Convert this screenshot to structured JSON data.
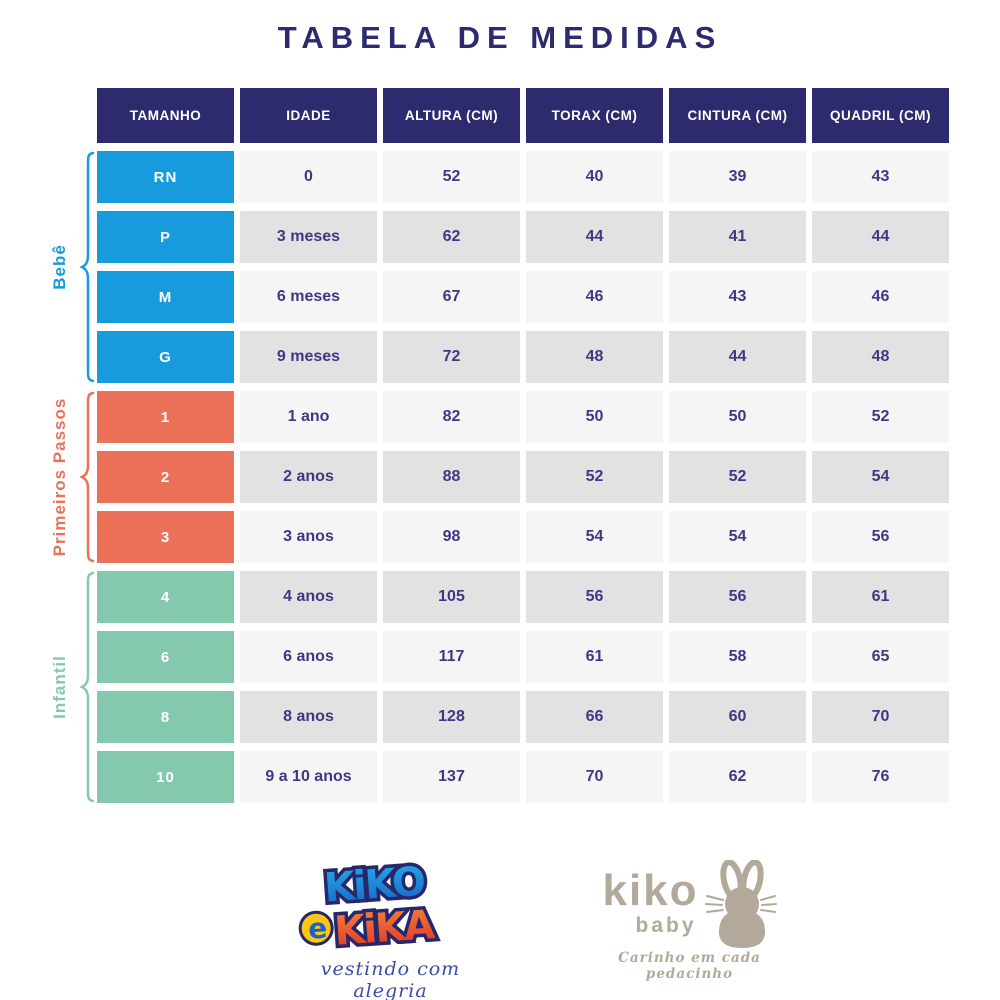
{
  "title": "TABELA DE MEDIDAS",
  "colors": {
    "navy_header": "#2d2a6e",
    "cell_text": "#3f3882",
    "row_light": "#f5f5f6",
    "row_dark": "#e2e2e3",
    "bebe_blue": "#189bdc",
    "passos_coral": "#eb7158",
    "infantil_mint": "#84c9ae",
    "brand_taupe": "#b3a99a",
    "tagline_blue": "#3c4da1"
  },
  "table": {
    "headers": [
      "TAMANHO",
      "IDADE",
      "ALTURA (CM)",
      "TORAX (CM)",
      "CINTURA (CM)",
      "QUADRIL (CM)"
    ],
    "groups": [
      {
        "label": "Bebê",
        "color": "#189bdc",
        "rows": [
          {
            "size": "RN",
            "idade": "0",
            "altura": "52",
            "torax": "40",
            "cintura": "39",
            "quadril": "43"
          },
          {
            "size": "P",
            "idade": "3 meses",
            "altura": "62",
            "torax": "44",
            "cintura": "41",
            "quadril": "44"
          },
          {
            "size": "M",
            "idade": "6 meses",
            "altura": "67",
            "torax": "46",
            "cintura": "43",
            "quadril": "46"
          },
          {
            "size": "G",
            "idade": "9 meses",
            "altura": "72",
            "torax": "48",
            "cintura": "44",
            "quadril": "48"
          }
        ]
      },
      {
        "label": "Primeiros Passos",
        "color": "#eb7158",
        "rows": [
          {
            "size": "1",
            "idade": "1 ano",
            "altura": "82",
            "torax": "50",
            "cintura": "50",
            "quadril": "52"
          },
          {
            "size": "2",
            "idade": "2 anos",
            "altura": "88",
            "torax": "52",
            "cintura": "52",
            "quadril": "54"
          },
          {
            "size": "3",
            "idade": "3 anos",
            "altura": "98",
            "torax": "54",
            "cintura": "54",
            "quadril": "56"
          }
        ]
      },
      {
        "label": "Infantil",
        "color": "#84c9ae",
        "rows": [
          {
            "size": "4",
            "idade": "4 anos",
            "altura": "105",
            "torax": "56",
            "cintura": "56",
            "quadril": "61"
          },
          {
            "size": "6",
            "idade": "6 anos",
            "altura": "117",
            "torax": "61",
            "cintura": "58",
            "quadril": "65"
          },
          {
            "size": "8",
            "idade": "8 anos",
            "altura": "128",
            "torax": "66",
            "cintura": "60",
            "quadril": "70"
          },
          {
            "size": "10",
            "idade": "9 a 10 anos",
            "altura": "137",
            "torax": "70",
            "cintura": "62",
            "quadril": "76"
          }
        ]
      }
    ]
  },
  "footer": {
    "brand1": {
      "word1": "KiKO",
      "conj": "e",
      "word2": "KiKA",
      "tagline": "vestindo com alegria"
    },
    "brand2": {
      "name": "kiko",
      "sub": "baby",
      "tagline": "Carinho em cada pedacinho"
    }
  }
}
